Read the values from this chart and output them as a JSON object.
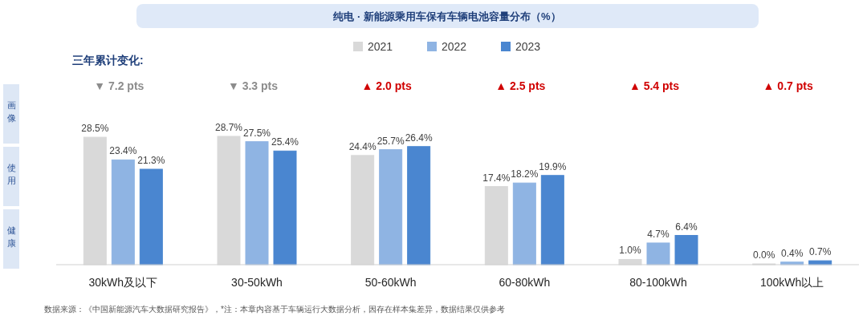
{
  "chart_data": {
    "type": "bar",
    "title": "纯电 · 新能源乘用车保有车辆电池容量分布（%）",
    "categories": [
      "30kWh及以下",
      "30-50kWh",
      "50-60kWh",
      "60-80kWh",
      "80-100kWh",
      "100kWh以上"
    ],
    "series": [
      {
        "name": "2021",
        "color": "#d9d9d9",
        "values": [
          28.5,
          28.7,
          24.4,
          17.4,
          1.0,
          0.0
        ],
        "value_labels": [
          "28.5%",
          "28.7%",
          "24.4%",
          "17.4%",
          "1.0%",
          "0.0%"
        ]
      },
      {
        "name": "2022",
        "color": "#8fb4e3",
        "values": [
          23.4,
          27.5,
          25.7,
          18.2,
          4.7,
          0.4
        ],
        "value_labels": [
          "23.4%",
          "27.5%",
          "25.7%",
          "18.2%",
          "4.7%",
          "0.4%"
        ]
      },
      {
        "name": "2023",
        "color": "#4a86d0",
        "values": [
          21.3,
          25.4,
          26.4,
          19.9,
          6.4,
          0.7
        ],
        "value_labels": [
          "21.3%",
          "25.4%",
          "26.4%",
          "19.9%",
          "6.4%",
          "0.7%"
        ]
      }
    ],
    "legend": "top",
    "annotations": [
      "三年累计变化:",
      "画像",
      "使用",
      "健康",
      "▼ 7.2 pts",
      "▼ 3.3 pts",
      "▲ 2.0 pts",
      "▲ 2.5 pts",
      "▲ 5.4 pts",
      "▲ 0.7 pts",
      "数据来源：《中国新能源汽车大数据研究报告》，*注：本章内容基于车辆运行大数据分析，因存在样本集差异，数据结果仅供参考"
    ]
  }
}
